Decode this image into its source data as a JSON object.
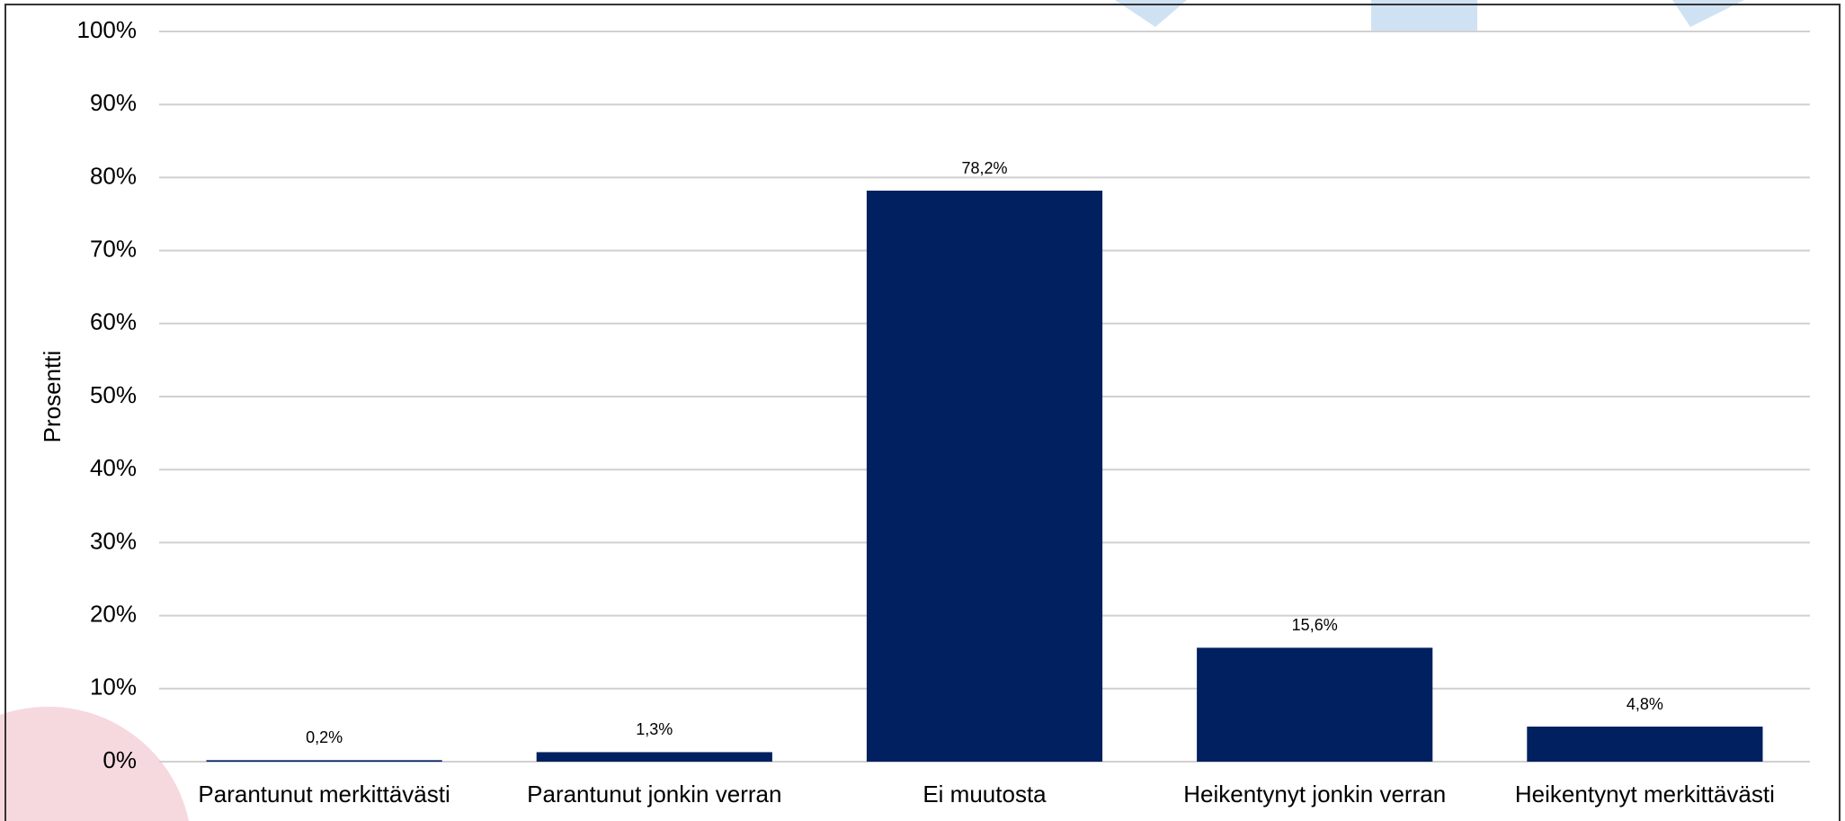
{
  "chart_data": {
    "type": "bar",
    "y_label": "Prosentti",
    "categories": [
      "Parantunut merkittävästi",
      "Parantunut jonkin verran",
      "Ei muutosta",
      "Heikentynyt jonkin verran",
      "Heikentynyt merkittävästi"
    ],
    "values": [
      0.2,
      1.3,
      78.2,
      15.6,
      4.8
    ],
    "value_labels": [
      "0,2%",
      "1,3%",
      "78,2%",
      "15,6%",
      "4,8%"
    ],
    "color": "#002060",
    "ylim": [
      0,
      100
    ],
    "yticks": [
      {
        "value": 0,
        "label": "0%"
      },
      {
        "value": 10,
        "label": "10%"
      },
      {
        "value": 20,
        "label": "20%"
      },
      {
        "value": 30,
        "label": "30%"
      },
      {
        "value": 40,
        "label": "40%"
      },
      {
        "value": 50,
        "label": "50%"
      },
      {
        "value": 60,
        "label": "60%"
      },
      {
        "value": 70,
        "label": "70%"
      },
      {
        "value": 80,
        "label": "80%"
      },
      {
        "value": 90,
        "label": "90%"
      },
      {
        "value": 100,
        "label": "100%"
      }
    ],
    "grid": true
  }
}
